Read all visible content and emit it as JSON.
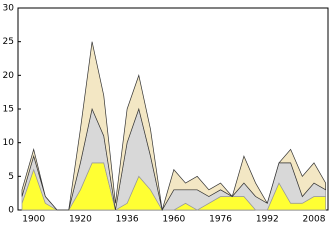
{
  "chart_data": {
    "type": "stacked-area",
    "categories": [
      null,
      "1900",
      null,
      null,
      null,
      "1920",
      null,
      null,
      null,
      "1936",
      null,
      null,
      null,
      "1960",
      null,
      null,
      null,
      "1976",
      null,
      null,
      null,
      "1992",
      null,
      null,
      null,
      "2008",
      null
    ],
    "series": [
      {
        "color": "#ffff33",
        "values": [
          1,
          6,
          1,
          0,
          0,
          3,
          7,
          7,
          0,
          1,
          5,
          3,
          0,
          0,
          1,
          0,
          1,
          2,
          2,
          2,
          0,
          0,
          4,
          1,
          1,
          2,
          2
        ]
      },
      {
        "color": "#d8d8d8",
        "values": [
          1,
          2,
          1,
          0,
          0,
          4,
          8,
          4,
          0,
          9,
          10,
          5,
          0,
          3,
          2,
          3,
          1,
          1,
          0,
          2,
          2,
          1,
          3,
          6,
          1,
          2,
          1
        ]
      },
      {
        "color": "#f3e7c4",
        "values": [
          1,
          1,
          0,
          0,
          0,
          5,
          10,
          6,
          1,
          5,
          5,
          4,
          0,
          3,
          1,
          2,
          1,
          1,
          0,
          4,
          2,
          0,
          0,
          2,
          3,
          3,
          1
        ]
      }
    ],
    "ylim": [
      0,
      30
    ],
    "yticks": [
      0,
      5,
      10,
      15,
      20,
      25,
      30
    ]
  }
}
